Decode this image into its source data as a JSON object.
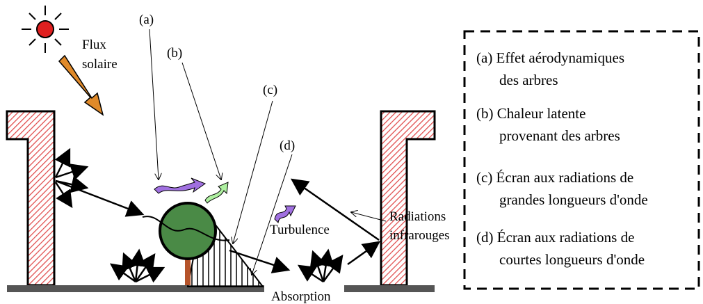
{
  "diagram": {
    "sun_label": [
      "Flux",
      "solaire"
    ],
    "markers": [
      "(a)",
      "(b)",
      "(c)",
      "(d)"
    ],
    "turbulence": "Turbulence",
    "infrared": [
      "Radiations",
      "infrarouges"
    ],
    "absorption": "Absorption"
  },
  "legend": {
    "items": [
      [
        "(a) Effet aérodynamiques",
        "des arbres"
      ],
      [
        "(b) Chaleur latente",
        "provenant des arbres"
      ],
      [
        "(c) Écran aux radiations de",
        "grandes longueurs d'onde"
      ],
      [
        "(d) Écran aux radiations de",
        "courtes longueurs d'onde"
      ]
    ]
  }
}
